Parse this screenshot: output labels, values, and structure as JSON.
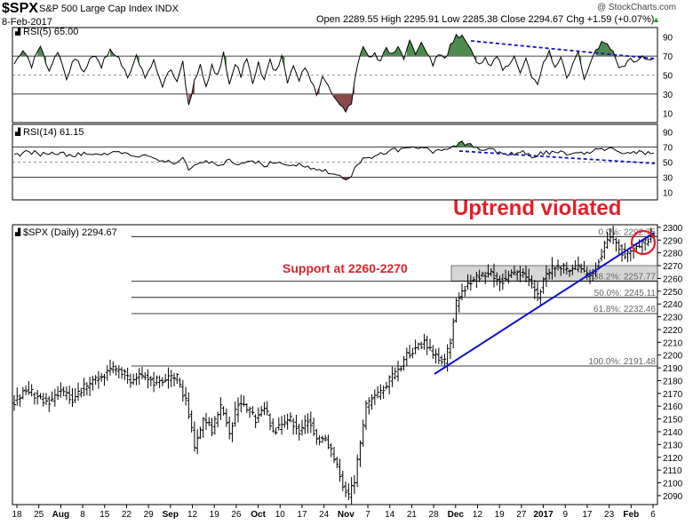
{
  "header": {
    "symbol": "$SPX",
    "name": "S&P 500 Large Cap Index INDX",
    "date": "8-Feb-2017",
    "quote": "Open 2289.55  High 2295.91  Low 2285.38  Close 2294.67  Chg +1.59 (+0.07%)",
    "chg_arrow": "▲",
    "watermark": "@ StockCharts.com"
  },
  "panels": {
    "rsi5": {
      "label": "RSI(5) 65.00",
      "icon": "chart-glyph"
    },
    "rsi14": {
      "label": "RSI(14) 61.15",
      "icon": "chart-glyph"
    },
    "price": {
      "label": "$SPX (Daily) 2294.67",
      "icon": "chart-glyph"
    }
  },
  "annotations": {
    "uptrend": "Uptrend violated",
    "support": "Support at 2260-2270"
  },
  "fib_levels": [
    {
      "label": "0.0%: 2292.75",
      "value": 2292.75
    },
    {
      "label": "38.2%: 2257.77",
      "value": 2257.77
    },
    {
      "label": "50.0%: 2245.11",
      "value": 2245.11
    },
    {
      "label": "61.8%: 2232.46",
      "value": 2232.46
    },
    {
      "label": "100.0%: 2191.48",
      "value": 2191.48
    }
  ],
  "colors": {
    "price_bars": "#000000",
    "trendline": "#1010cc",
    "annotation_red": "#e0202a",
    "overbought_fill": "#4f8a4f",
    "oversold_fill": "#8b4a4a",
    "support_box": "#c8c8c8",
    "grid": "#d8d8d8"
  },
  "chart_data": {
    "type": "ohlc",
    "price_axis": {
      "ylim": [
        2083,
        2302
      ],
      "ticks": [
        2090,
        2100,
        2110,
        2120,
        2130,
        2140,
        2150,
        2160,
        2170,
        2180,
        2190,
        2200,
        2210,
        2220,
        2230,
        2240,
        2250,
        2260,
        2270,
        2280,
        2290,
        2300
      ]
    },
    "rsi_axis": {
      "ticks": [
        10,
        30,
        50,
        70,
        90
      ]
    },
    "x_tick_labels": [
      "18",
      "25",
      "Aug",
      "8",
      "15",
      "22",
      "29",
      "Sep",
      "12",
      "19",
      "26",
      "Oct",
      "10",
      "17",
      "24",
      "Nov",
      "7",
      "14",
      "21",
      "28",
      "Dec",
      "12",
      "19",
      "27",
      "2017",
      "9",
      "17",
      "23",
      "Feb",
      "6"
    ],
    "support_zone": [
      2258,
      2270
    ],
    "close_anchors": [
      [
        0,
        2163
      ],
      [
        4,
        2174
      ],
      [
        8,
        2167
      ],
      [
        12,
        2163
      ],
      [
        16,
        2172
      ],
      [
        20,
        2165
      ],
      [
        24,
        2175
      ],
      [
        28,
        2180
      ],
      [
        32,
        2187
      ],
      [
        36,
        2190
      ],
      [
        40,
        2180
      ],
      [
        44,
        2184
      ],
      [
        48,
        2179
      ],
      [
        52,
        2181
      ],
      [
        56,
        2182
      ],
      [
        59,
        2165
      ],
      [
        62,
        2128
      ],
      [
        65,
        2150
      ],
      [
        68,
        2142
      ],
      [
        71,
        2160
      ],
      [
        74,
        2140
      ],
      [
        77,
        2162
      ],
      [
        80,
        2158
      ],
      [
        83,
        2150
      ],
      [
        86,
        2160
      ],
      [
        89,
        2140
      ],
      [
        92,
        2145
      ],
      [
        95,
        2150
      ],
      [
        98,
        2140
      ],
      [
        101,
        2150
      ],
      [
        104,
        2135
      ],
      [
        107,
        2133
      ],
      [
        110,
        2120
      ],
      [
        113,
        2098
      ],
      [
        115,
        2090
      ],
      [
        117,
        2102
      ],
      [
        119,
        2132
      ],
      [
        121,
        2160
      ],
      [
        123,
        2165
      ],
      [
        126,
        2170
      ],
      [
        129,
        2180
      ],
      [
        132,
        2188
      ],
      [
        135,
        2200
      ],
      [
        138,
        2205
      ],
      [
        141,
        2210
      ],
      [
        144,
        2200
      ],
      [
        146,
        2197
      ],
      [
        148,
        2195
      ],
      [
        150,
        2212
      ],
      [
        152,
        2240
      ],
      [
        154,
        2250
      ],
      [
        157,
        2258
      ],
      [
        160,
        2262
      ],
      [
        163,
        2265
      ],
      [
        166,
        2260
      ],
      [
        169,
        2258
      ],
      [
        172,
        2265
      ],
      [
        175,
        2262
      ],
      [
        178,
        2255
      ],
      [
        180,
        2245
      ],
      [
        182,
        2258
      ],
      [
        185,
        2268
      ],
      [
        188,
        2270
      ],
      [
        191,
        2265
      ],
      [
        194,
        2270
      ],
      [
        197,
        2262
      ],
      [
        200,
        2268
      ],
      [
        202,
        2280
      ],
      [
        204,
        2290
      ],
      [
        206,
        2292
      ],
      [
        208,
        2284
      ],
      [
        210,
        2278
      ],
      [
        212,
        2280
      ],
      [
        214,
        2285
      ],
      [
        216,
        2287
      ],
      [
        218,
        2290
      ],
      [
        220,
        2294.67
      ]
    ],
    "rsi5_anchors": [
      [
        0,
        62
      ],
      [
        3,
        75
      ],
      [
        6,
        60
      ],
      [
        9,
        78
      ],
      [
        12,
        55
      ],
      [
        15,
        72
      ],
      [
        18,
        48
      ],
      [
        21,
        68
      ],
      [
        24,
        52
      ],
      [
        27,
        72
      ],
      [
        30,
        60
      ],
      [
        33,
        77
      ],
      [
        36,
        70
      ],
      [
        39,
        45
      ],
      [
        42,
        72
      ],
      [
        45,
        48
      ],
      [
        48,
        65
      ],
      [
        51,
        40
      ],
      [
        54,
        58
      ],
      [
        56,
        42
      ],
      [
        58,
        62
      ],
      [
        60,
        18
      ],
      [
        62,
        45
      ],
      [
        64,
        60
      ],
      [
        66,
        35
      ],
      [
        68,
        60
      ],
      [
        70,
        48
      ],
      [
        72,
        72
      ],
      [
        74,
        42
      ],
      [
        76,
        62
      ],
      [
        78,
        50
      ],
      [
        80,
        70
      ],
      [
        82,
        38
      ],
      [
        84,
        62
      ],
      [
        86,
        45
      ],
      [
        88,
        65
      ],
      [
        90,
        52
      ],
      [
        92,
        72
      ],
      [
        94,
        40
      ],
      [
        96,
        58
      ],
      [
        98,
        44
      ],
      [
        100,
        60
      ],
      [
        102,
        46
      ],
      [
        104,
        30
      ],
      [
        106,
        50
      ],
      [
        108,
        42
      ],
      [
        110,
        25
      ],
      [
        112,
        18
      ],
      [
        114,
        12
      ],
      [
        116,
        22
      ],
      [
        118,
        60
      ],
      [
        120,
        80
      ],
      [
        122,
        68
      ],
      [
        124,
        74
      ],
      [
        126,
        62
      ],
      [
        128,
        80
      ],
      [
        130,
        70
      ],
      [
        132,
        78
      ],
      [
        134,
        66
      ],
      [
        136,
        84
      ],
      [
        138,
        74
      ],
      [
        140,
        82
      ],
      [
        142,
        74
      ],
      [
        144,
        60
      ],
      [
        146,
        72
      ],
      [
        148,
        66
      ],
      [
        150,
        80
      ],
      [
        152,
        90
      ],
      [
        154,
        92
      ],
      [
        156,
        84
      ],
      [
        158,
        70
      ],
      [
        160,
        60
      ],
      [
        162,
        70
      ],
      [
        164,
        58
      ],
      [
        166,
        72
      ],
      [
        168,
        56
      ],
      [
        170,
        62
      ],
      [
        172,
        70
      ],
      [
        174,
        52
      ],
      [
        176,
        66
      ],
      [
        178,
        50
      ],
      [
        180,
        42
      ],
      [
        182,
        64
      ],
      [
        184,
        74
      ],
      [
        186,
        56
      ],
      [
        188,
        68
      ],
      [
        190,
        46
      ],
      [
        192,
        62
      ],
      [
        194,
        74
      ],
      [
        196,
        48
      ],
      [
        198,
        62
      ],
      [
        200,
        74
      ],
      [
        202,
        86
      ],
      [
        204,
        80
      ],
      [
        206,
        72
      ],
      [
        208,
        58
      ],
      [
        210,
        62
      ],
      [
        212,
        70
      ],
      [
        214,
        62
      ],
      [
        216,
        68
      ],
      [
        218,
        66
      ],
      [
        220,
        65
      ]
    ],
    "rsi14_anchors": [
      [
        0,
        58
      ],
      [
        5,
        64
      ],
      [
        10,
        60
      ],
      [
        15,
        62
      ],
      [
        20,
        58
      ],
      [
        25,
        62
      ],
      [
        30,
        60
      ],
      [
        35,
        64
      ],
      [
        40,
        58
      ],
      [
        45,
        60
      ],
      [
        50,
        52
      ],
      [
        55,
        50
      ],
      [
        58,
        55
      ],
      [
        60,
        42
      ],
      [
        63,
        46
      ],
      [
        66,
        50
      ],
      [
        70,
        46
      ],
      [
        74,
        52
      ],
      [
        78,
        48
      ],
      [
        82,
        52
      ],
      [
        86,
        46
      ],
      [
        90,
        50
      ],
      [
        94,
        44
      ],
      [
        98,
        48
      ],
      [
        102,
        42
      ],
      [
        106,
        40
      ],
      [
        109,
        36
      ],
      [
        112,
        30
      ],
      [
        114,
        28
      ],
      [
        116,
        32
      ],
      [
        118,
        48
      ],
      [
        120,
        55
      ],
      [
        124,
        58
      ],
      [
        128,
        64
      ],
      [
        132,
        66
      ],
      [
        136,
        68
      ],
      [
        140,
        70
      ],
      [
        144,
        64
      ],
      [
        148,
        66
      ],
      [
        151,
        72
      ],
      [
        154,
        76
      ],
      [
        158,
        70
      ],
      [
        162,
        66
      ],
      [
        166,
        64
      ],
      [
        170,
        60
      ],
      [
        174,
        64
      ],
      [
        178,
        58
      ],
      [
        182,
        62
      ],
      [
        186,
        64
      ],
      [
        190,
        62
      ],
      [
        194,
        64
      ],
      [
        198,
        62
      ],
      [
        202,
        68
      ],
      [
        206,
        66
      ],
      [
        210,
        62
      ],
      [
        214,
        64
      ],
      [
        218,
        61
      ],
      [
        220,
        61.15
      ]
    ]
  }
}
